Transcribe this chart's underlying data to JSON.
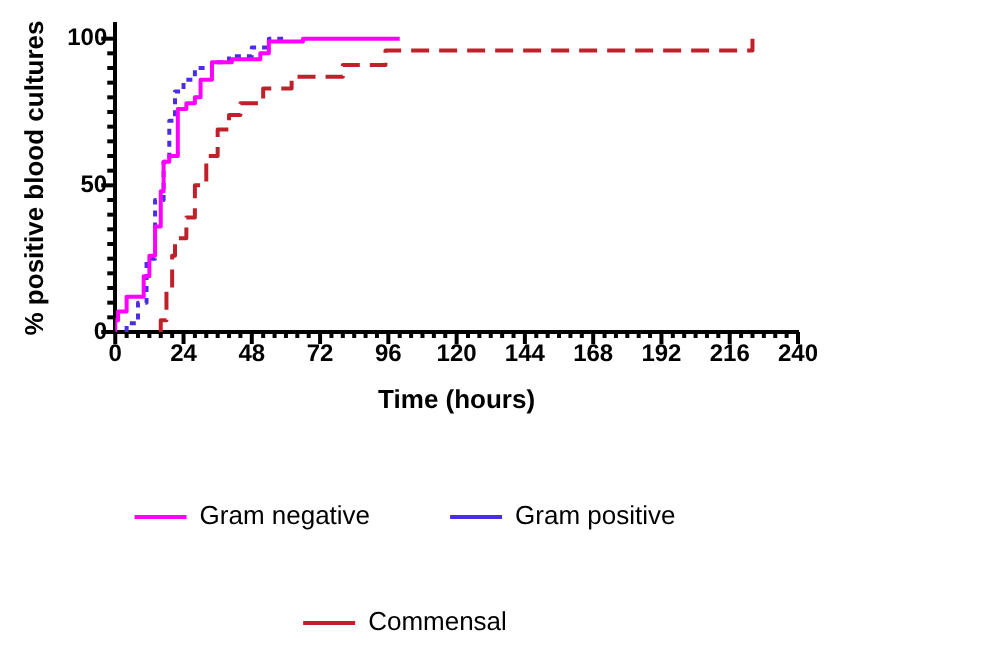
{
  "chart_data": {
    "type": "step",
    "xlabel": "Time (hours)",
    "ylabel": "% positive blood cultures",
    "xlim": [
      0,
      240
    ],
    "ylim": [
      0,
      105
    ],
    "xticks": [
      0,
      {
        "value": 4,
        "label": null
      },
      {
        "value": 8,
        "label": null
      },
      {
        "value": 12,
        "label": null
      },
      {
        "value": 16,
        "label": null
      },
      {
        "value": 20,
        "label": null
      },
      24,
      {
        "value": 28,
        "label": null
      },
      {
        "value": 32,
        "label": null
      },
      {
        "value": 36,
        "label": null
      },
      {
        "value": 40,
        "label": null
      },
      {
        "value": 44,
        "label": null
      },
      48,
      {
        "value": 52,
        "label": null
      },
      {
        "value": 56,
        "label": null
      },
      {
        "value": 60,
        "label": null
      },
      {
        "value": 64,
        "label": null
      },
      {
        "value": 68,
        "label": null
      },
      72,
      {
        "value": 76,
        "label": null
      },
      {
        "value": 80,
        "label": null
      },
      {
        "value": 84,
        "label": null
      },
      {
        "value": 88,
        "label": null
      },
      {
        "value": 92,
        "label": null
      },
      96,
      {
        "value": 100,
        "label": null
      },
      {
        "value": 104,
        "label": null
      },
      {
        "value": 108,
        "label": null
      },
      {
        "value": 112,
        "label": null
      },
      {
        "value": 116,
        "label": null
      },
      120,
      {
        "value": 124,
        "label": null
      },
      {
        "value": 128,
        "label": null
      },
      {
        "value": 132,
        "label": null
      },
      {
        "value": 136,
        "label": null
      },
      {
        "value": 140,
        "label": null
      },
      144,
      {
        "value": 148,
        "label": null
      },
      {
        "value": 152,
        "label": null
      },
      {
        "value": 156,
        "label": null
      },
      {
        "value": 160,
        "label": null
      },
      {
        "value": 164,
        "label": null
      },
      168,
      {
        "value": 172,
        "label": null
      },
      {
        "value": 176,
        "label": null
      },
      {
        "value": 180,
        "label": null
      },
      {
        "value": 184,
        "label": null
      },
      {
        "value": 188,
        "label": null
      },
      192,
      {
        "value": 196,
        "label": null
      },
      {
        "value": 200,
        "label": null
      },
      {
        "value": 204,
        "label": null
      },
      {
        "value": 208,
        "label": null
      },
      {
        "value": 212,
        "label": null
      },
      216,
      {
        "value": 220,
        "label": null
      },
      {
        "value": 224,
        "label": null
      },
      {
        "value": 228,
        "label": null
      },
      {
        "value": 232,
        "label": null
      },
      {
        "value": 236,
        "label": null
      },
      240
    ],
    "yticks": [
      0,
      {
        "value": 5,
        "label": null
      },
      {
        "value": 10,
        "label": null
      },
      {
        "value": 15,
        "label": null
      },
      {
        "value": 20,
        "label": null
      },
      {
        "value": 25,
        "label": null
      },
      {
        "value": 30,
        "label": null
      },
      {
        "value": 35,
        "label": null
      },
      {
        "value": 40,
        "label": null
      },
      {
        "value": 45,
        "label": null
      },
      50,
      {
        "value": 55,
        "label": null
      },
      {
        "value": 60,
        "label": null
      },
      {
        "value": 65,
        "label": null
      },
      {
        "value": 70,
        "label": null
      },
      {
        "value": 75,
        "label": null
      },
      {
        "value": 80,
        "label": null
      },
      {
        "value": 85,
        "label": null
      },
      {
        "value": 90,
        "label": null
      },
      {
        "value": 95,
        "label": null
      },
      100
    ],
    "grid": false,
    "legend": "bottom",
    "marker": "none",
    "series": [
      {
        "name": "Gram negative",
        "color": "#ff00ff",
        "line_style": "solid",
        "x": [
          0,
          1,
          4,
          10,
          12,
          14,
          16,
          17,
          19,
          22,
          25,
          28,
          30,
          34,
          41,
          51,
          54,
          66,
          100
        ],
        "values": [
          0,
          4,
          7,
          12,
          19,
          26,
          36,
          48,
          58,
          60,
          76,
          78,
          80,
          86,
          92,
          93,
          95,
          99,
          100
        ]
      },
      {
        "name": "Gram positive",
        "color": "#4a2ee6",
        "line_style": "dotted",
        "x": [
          4,
          8,
          11,
          14,
          17,
          19,
          21,
          24,
          28,
          34,
          40,
          48,
          54,
          59
        ],
        "values": [
          0,
          3,
          10,
          25,
          45,
          58,
          72,
          82,
          86,
          90,
          92,
          94,
          97,
          100
        ]
      },
      {
        "name": "Commensal",
        "color": "#c0202a",
        "line_style": "dashed",
        "x": [
          16,
          18,
          20,
          21,
          25,
          28,
          32,
          36,
          40,
          44,
          52,
          62,
          80,
          95,
          116,
          224,
          224
        ],
        "values": [
          0,
          4,
          14,
          26,
          32,
          39,
          50,
          60,
          69,
          74,
          78,
          83,
          87,
          91,
          96,
          96,
          100
        ]
      }
    ]
  }
}
